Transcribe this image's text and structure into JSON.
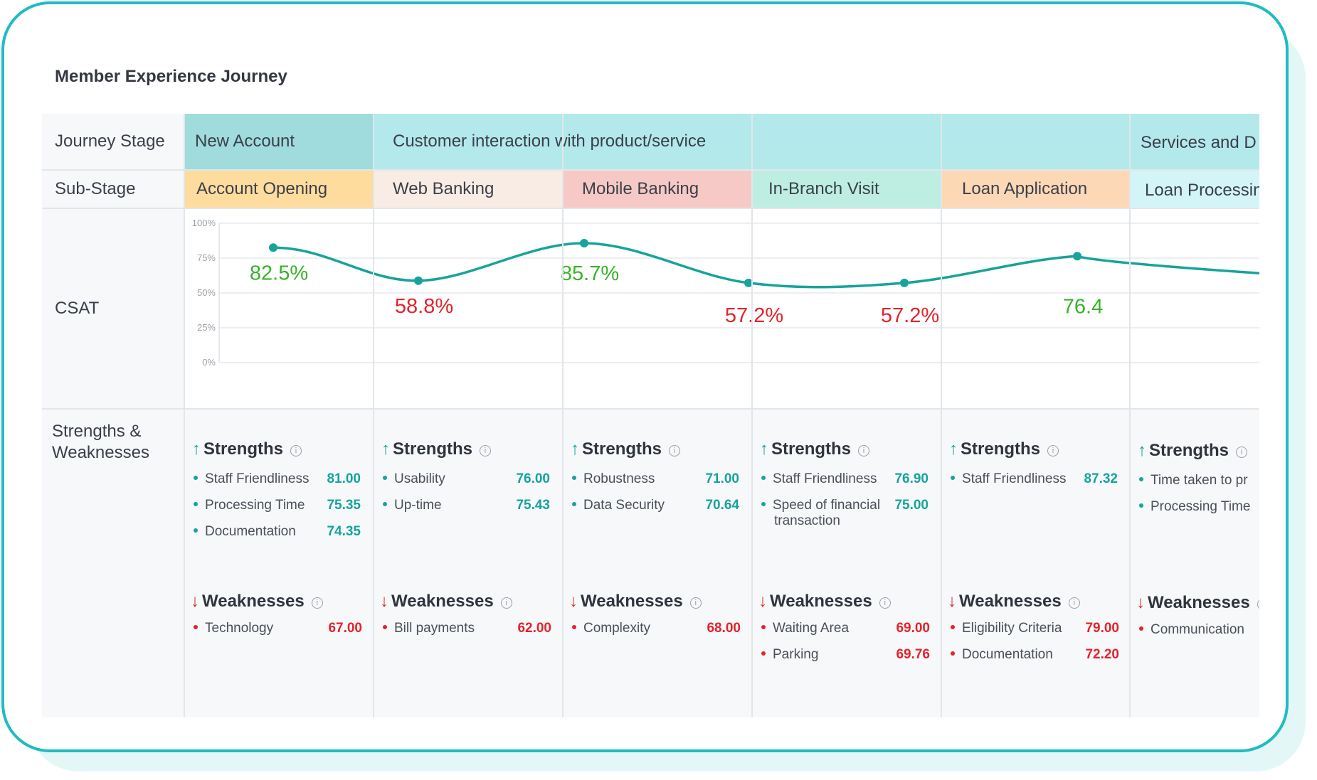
{
  "page_title": "Member Experience Journey",
  "row_labels": {
    "journey_stage": "Journey Stage",
    "sub_stage": "Sub-Stage",
    "csat": "CSAT",
    "strengths_weaknesses_1": "Strengths &",
    "strengths_weaknesses_2": "Weaknesses"
  },
  "stages": [
    {
      "label": "New Account",
      "color": "#a0dcdc"
    },
    {
      "label": "Customer interaction with product/service",
      "color": "#b3e9ea"
    },
    {
      "label": "Services and D",
      "color": "#b3e9ea"
    }
  ],
  "sub_stages": [
    {
      "label": "Account Opening",
      "color": "#fedc9e"
    },
    {
      "label": "Web Banking",
      "color": "#f9ece4"
    },
    {
      "label": "Mobile Banking",
      "color": "#f6c9c6"
    },
    {
      "label": "In-Branch Visit",
      "color": "#bdeee1"
    },
    {
      "label": "Loan Application",
      "color": "#fdd8b6"
    },
    {
      "label": "Loan Processin",
      "color": "#d3f5f8"
    }
  ],
  "section_labels": {
    "strengths": "Strengths",
    "weaknesses": "Weaknesses",
    "info": "i"
  },
  "colors": {
    "line": "#17a39b",
    "good": "#37b329",
    "bad": "#e3232b",
    "strength_value": "#17a39b",
    "weakness_value": "#e3232b"
  },
  "chart_data": {
    "type": "line",
    "title": "CSAT",
    "categories": [
      "Account Opening",
      "Web Banking",
      "Mobile Banking",
      "In-Branch Visit",
      "Loan Application",
      "Loan Processin"
    ],
    "values": [
      82.5,
      58.8,
      85.7,
      57.2,
      57.2,
      76.4
    ],
    "data_labels": [
      "82.5%",
      "58.8%",
      "85.7%",
      "57.2%",
      "57.2%",
      "76.4"
    ],
    "label_status": [
      "good",
      "bad",
      "good",
      "bad",
      "bad",
      "good"
    ],
    "ylim": [
      0,
      100
    ],
    "yticks": [
      "0%",
      "25%",
      "50%",
      "75%",
      "100%"
    ],
    "ytick_values": [
      0,
      25,
      50,
      75,
      100
    ],
    "grid": true
  },
  "columns": [
    {
      "strengths": [
        {
          "name": "Staff Friendliness",
          "value": "81.00"
        },
        {
          "name": "Processing Time",
          "value": "75.35"
        },
        {
          "name": "Documentation",
          "value": "74.35"
        }
      ],
      "weaknesses": [
        {
          "name": "Technology",
          "value": "67.00"
        }
      ]
    },
    {
      "strengths": [
        {
          "name": "Usability",
          "value": "76.00"
        },
        {
          "name": "Up-time",
          "value": "75.43"
        }
      ],
      "weaknesses": [
        {
          "name": "Bill payments",
          "value": "62.00"
        }
      ]
    },
    {
      "strengths": [
        {
          "name": "Robustness",
          "value": "71.00"
        },
        {
          "name": "Data Security",
          "value": "70.64"
        }
      ],
      "weaknesses": [
        {
          "name": "Complexity",
          "value": "68.00"
        }
      ]
    },
    {
      "strengths": [
        {
          "name": "Staff Friendliness",
          "value": "76.90"
        },
        {
          "name": "Speed of financial",
          "name2": "transaction",
          "value": "75.00"
        }
      ],
      "weaknesses": [
        {
          "name": "Waiting Area",
          "value": "69.00"
        },
        {
          "name": "Parking",
          "value": "69.76"
        }
      ]
    },
    {
      "strengths": [
        {
          "name": "Staff Friendliness",
          "value": "87.32"
        }
      ],
      "weaknesses": [
        {
          "name": "Eligibility Criteria",
          "value": "79.00"
        },
        {
          "name": "Documentation",
          "value": "72.20"
        }
      ]
    },
    {
      "strengths": [
        {
          "name": "Time taken to pr",
          "value": ""
        },
        {
          "name": "Processing Time",
          "value": ""
        }
      ],
      "weaknesses": [
        {
          "name": "Communication",
          "value": ""
        }
      ]
    }
  ]
}
